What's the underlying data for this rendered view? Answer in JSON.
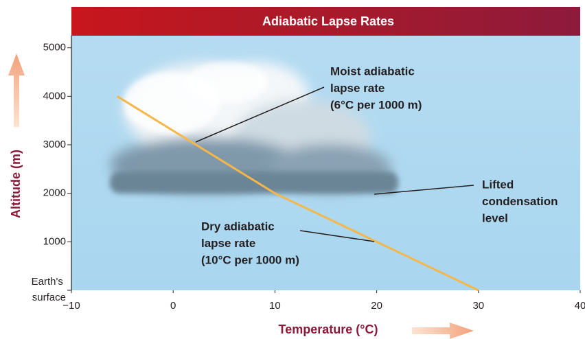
{
  "chart_data": {
    "type": "line",
    "title": "Adiabatic Lapse Rates",
    "x_label": "Temperature (°C)",
    "y_label": "Altitude (m)",
    "x": [
      30,
      20,
      10,
      -5.5
    ],
    "series": [
      {
        "color": "#f6b64a",
        "values": [
          0,
          1000,
          2000,
          4000
        ]
      }
    ],
    "xlim": [
      -10,
      40
    ],
    "xticks": [
      {
        "value": -10,
        "label": "−10"
      },
      0,
      10,
      20,
      30,
      40
    ],
    "ylim": [
      0,
      5250
    ],
    "yticks": [
      {
        "value": 0,
        "label": "Earth's surface"
      },
      1000,
      2000,
      3000,
      4000,
      5000
    ],
    "grid": false,
    "annotations": [
      {
        "lines": [
          "Moist adiabatic",
          "lapse rate",
          "(6°C per 1000 m)"
        ]
      },
      {
        "lines": [
          "Dry adiabatic",
          "lapse rate",
          "(10°C per 1000 m)"
        ]
      },
      {
        "lines": [
          "Lifted",
          "condensation",
          "level"
        ]
      }
    ]
  }
}
